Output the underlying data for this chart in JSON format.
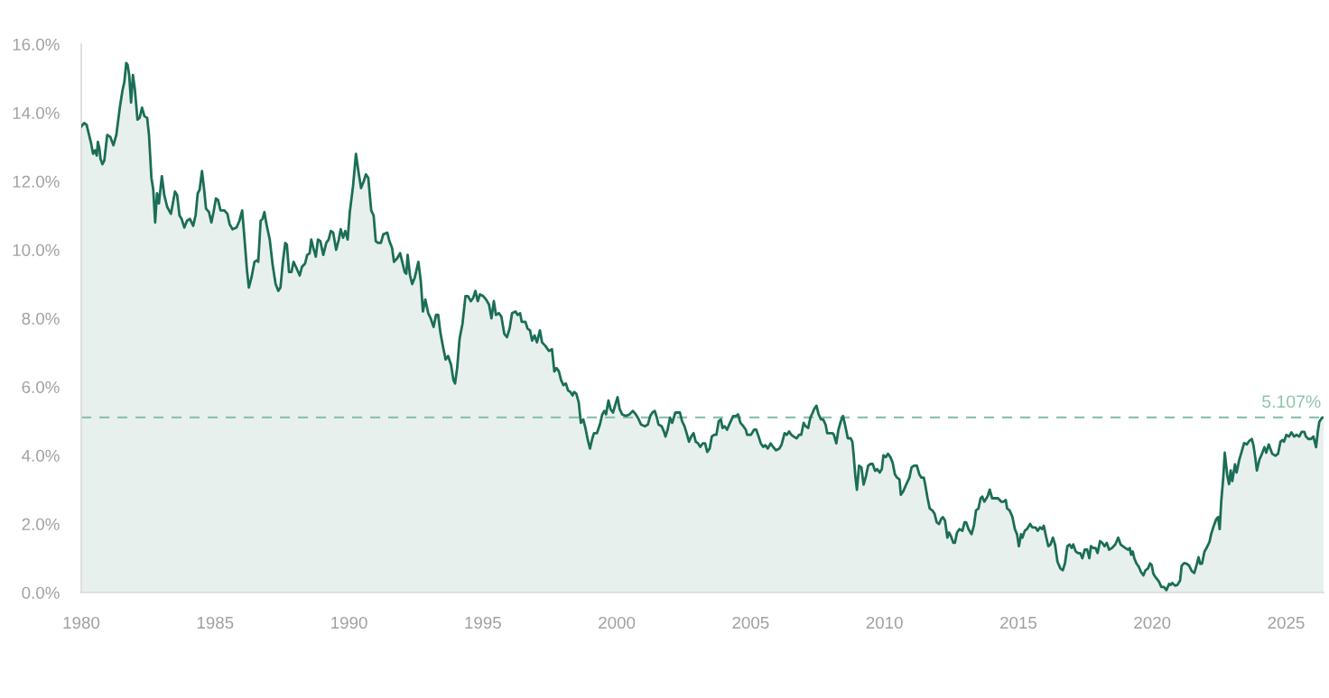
{
  "chart_data": {
    "type": "area",
    "x": [
      1980.0,
      1980.11,
      1980.2,
      1980.37,
      1980.44,
      1980.51,
      1980.58,
      1980.62,
      1980.68,
      1980.72,
      1980.79,
      1980.86,
      1980.97,
      1981.08,
      1981.2,
      1981.31,
      1981.44,
      1981.54,
      1981.61,
      1981.68,
      1981.73,
      1981.79,
      1981.86,
      1981.93,
      1982.0,
      1982.1,
      1982.18,
      1982.27,
      1982.36,
      1982.46,
      1982.53,
      1982.62,
      1982.69,
      1982.76,
      1982.83,
      1982.9,
      1983.01,
      1983.1,
      1983.21,
      1983.35,
      1983.5,
      1983.58,
      1983.67,
      1983.75,
      1983.85,
      1983.95,
      1984.06,
      1984.18,
      1984.27,
      1984.35,
      1984.42,
      1984.51,
      1984.59,
      1984.66,
      1984.77,
      1984.86,
      1984.94,
      1985.03,
      1985.11,
      1985.2,
      1985.34,
      1985.46,
      1985.54,
      1985.65,
      1985.8,
      1985.91,
      1986.01,
      1986.09,
      1986.19,
      1986.26,
      1986.36,
      1986.47,
      1986.57,
      1986.61,
      1986.7,
      1986.77,
      1986.84,
      1986.93,
      1987.04,
      1987.15,
      1987.26,
      1987.36,
      1987.44,
      1987.53,
      1987.62,
      1987.68,
      1987.76,
      1987.85,
      1987.93,
      1988.02,
      1988.16,
      1988.24,
      1988.36,
      1988.44,
      1988.53,
      1988.59,
      1988.67,
      1988.76,
      1988.84,
      1988.93,
      1989.04,
      1989.15,
      1989.24,
      1989.32,
      1989.41,
      1989.52,
      1989.62,
      1989.69,
      1989.78,
      1989.86,
      1989.95,
      1990.03,
      1990.15,
      1990.26,
      1990.35,
      1990.45,
      1990.55,
      1990.63,
      1990.72,
      1990.83,
      1990.92,
      1991.0,
      1991.09,
      1991.19,
      1991.28,
      1991.43,
      1991.51,
      1991.61,
      1991.68,
      1991.8,
      1991.91,
      1991.99,
      1992.08,
      1992.14,
      1992.19,
      1992.28,
      1992.36,
      1992.46,
      1992.59,
      1992.68,
      1992.76,
      1992.85,
      1992.96,
      1993.05,
      1993.16,
      1993.25,
      1993.33,
      1993.42,
      1993.53,
      1993.61,
      1993.7,
      1993.81,
      1993.9,
      1993.96,
      1994.04,
      1994.13,
      1994.24,
      1994.35,
      1994.44,
      1994.55,
      1994.64,
      1994.72,
      1994.81,
      1994.89,
      1995.01,
      1995.12,
      1995.23,
      1995.32,
      1995.41,
      1995.49,
      1995.6,
      1995.69,
      1995.8,
      1995.9,
      1996.0,
      1996.09,
      1996.22,
      1996.3,
      1996.39,
      1996.45,
      1996.59,
      1996.67,
      1996.76,
      1996.84,
      1996.93,
      1997.02,
      1997.13,
      1997.21,
      1997.33,
      1997.47,
      1997.58,
      1997.67,
      1997.75,
      1997.84,
      1997.92,
      1998.01,
      1998.1,
      1998.18,
      1998.27,
      1998.35,
      1998.41,
      1998.49,
      1998.58,
      1998.66,
      1998.75,
      1998.83,
      1998.92,
      1999.0,
      1999.09,
      1999.15,
      1999.26,
      1999.37,
      1999.46,
      1999.54,
      1999.6,
      1999.69,
      1999.77,
      1999.86,
      2000.03,
      2000.11,
      2000.2,
      2000.34,
      2000.48,
      2000.6,
      2000.71,
      2000.79,
      2000.91,
      2001.05,
      2001.16,
      2001.25,
      2001.33,
      2001.42,
      2001.5,
      2001.56,
      2001.68,
      2001.76,
      2001.82,
      2001.9,
      2001.99,
      2002.07,
      2002.19,
      2002.27,
      2002.36,
      2002.44,
      2002.53,
      2002.61,
      2002.7,
      2002.78,
      2002.87,
      2002.95,
      2003.04,
      2003.12,
      2003.21,
      2003.3,
      2003.38,
      2003.47,
      2003.55,
      2003.64,
      2003.72,
      2003.81,
      2003.89,
      2003.95,
      2004.03,
      2004.12,
      2004.23,
      2004.35,
      2004.46,
      2004.53,
      2004.62,
      2004.73,
      2004.82,
      2004.87,
      2005.01,
      2005.13,
      2005.21,
      2005.3,
      2005.38,
      2005.47,
      2005.55,
      2005.64,
      2005.75,
      2005.84,
      2005.95,
      2006.07,
      2006.15,
      2006.27,
      2006.35,
      2006.44,
      2006.52,
      2006.61,
      2006.72,
      2006.81,
      2006.89,
      2006.98,
      2007.06,
      2007.15,
      2007.23,
      2007.32,
      2007.37,
      2007.46,
      2007.54,
      2007.63,
      2007.71,
      2007.8,
      2007.86,
      2007.94,
      2008.06,
      2008.11,
      2008.2,
      2008.28,
      2008.37,
      2008.45,
      2008.54,
      2008.63,
      2008.74,
      2008.8,
      2008.85,
      2008.91,
      2008.97,
      2009.05,
      2009.14,
      2009.22,
      2009.31,
      2009.39,
      2009.48,
      2009.56,
      2009.65,
      2009.73,
      2009.82,
      2009.9,
      2009.96,
      2010.05,
      2010.13,
      2010.22,
      2010.3,
      2010.39,
      2010.47,
      2010.56,
      2010.61,
      2010.7,
      2010.81,
      2010.93,
      2011.01,
      2011.1,
      2011.21,
      2011.3,
      2011.38,
      2011.47,
      2011.52,
      2011.61,
      2011.69,
      2011.78,
      2011.87,
      2011.95,
      2012.04,
      2012.12,
      2012.18,
      2012.26,
      2012.35,
      2012.41,
      2012.48,
      2012.57,
      2012.63,
      2012.71,
      2012.8,
      2012.91,
      2012.99,
      2013.05,
      2013.14,
      2013.25,
      2013.34,
      2013.42,
      2013.51,
      2013.59,
      2013.65,
      2013.73,
      2013.85,
      2013.93,
      2014.02,
      2014.13,
      2014.24,
      2014.36,
      2014.44,
      2014.53,
      2014.58,
      2014.67,
      2014.78,
      2014.87,
      2014.95,
      2015.02,
      2015.1,
      2015.15,
      2015.24,
      2015.32,
      2015.44,
      2015.52,
      2015.64,
      2015.72,
      2015.81,
      2015.89,
      2015.95,
      2016.03,
      2016.12,
      2016.2,
      2016.29,
      2016.37,
      2016.46,
      2016.57,
      2016.66,
      2016.74,
      2016.83,
      2016.91,
      2016.99,
      2017.05,
      2017.14,
      2017.23,
      2017.31,
      2017.39,
      2017.48,
      2017.57,
      2017.65,
      2017.71,
      2017.79,
      2017.88,
      2017.96,
      2018.05,
      2018.13,
      2018.22,
      2018.3,
      2018.39,
      2018.5,
      2018.62,
      2018.73,
      2018.82,
      2018.9,
      2018.99,
      2019.1,
      2019.16,
      2019.21,
      2019.27,
      2019.33,
      2019.41,
      2019.5,
      2019.58,
      2019.67,
      2019.75,
      2019.84,
      2019.92,
      2019.98,
      2020.04,
      2020.12,
      2020.25,
      2020.34,
      2020.44,
      2020.53,
      2020.63,
      2020.69,
      2020.75,
      2020.85,
      2020.94,
      2021.04,
      2021.1,
      2021.19,
      2021.29,
      2021.38,
      2021.48,
      2021.57,
      2021.67,
      2021.73,
      2021.79,
      2021.86,
      2021.95,
      2022.05,
      2022.14,
      2022.2,
      2022.3,
      2022.39,
      2022.46,
      2022.52,
      2022.58,
      2022.65,
      2022.71,
      2022.8,
      2022.87,
      2022.93,
      2022.99,
      2023.09,
      2023.15,
      2023.25,
      2023.34,
      2023.43,
      2023.53,
      2023.62,
      2023.72,
      2023.78,
      2023.85,
      2023.91,
      2024.0,
      2024.1,
      2024.19,
      2024.26,
      2024.35,
      2024.48,
      2024.6,
      2024.7,
      2024.79,
      2024.86,
      2024.92,
      2025.01,
      2025.11,
      2025.2,
      2025.3,
      2025.39,
      2025.49,
      2025.58,
      2025.68,
      2025.74,
      2025.83,
      2025.93,
      2026.02,
      2026.12,
      2026.18,
      2026.24,
      2026.34,
      2026.4
    ],
    "series": [
      {
        "color": "#1b6e56",
        "values": [
          13.6,
          13.7,
          13.65,
          13.1,
          12.8,
          12.9,
          12.75,
          13.15,
          12.95,
          12.65,
          12.5,
          12.6,
          13.35,
          13.3,
          13.05,
          13.35,
          14.15,
          14.65,
          14.9,
          15.45,
          15.4,
          15.1,
          14.3,
          15.1,
          14.7,
          13.8,
          13.85,
          14.15,
          13.9,
          13.85,
          13.35,
          12.1,
          11.75,
          10.8,
          11.65,
          11.35,
          12.15,
          11.6,
          11.25,
          11.05,
          11.7,
          11.6,
          11.0,
          10.9,
          10.65,
          10.85,
          10.9,
          10.7,
          11.0,
          11.65,
          11.75,
          12.3,
          11.75,
          11.2,
          11.1,
          10.8,
          11.1,
          11.5,
          11.45,
          11.15,
          11.15,
          11.05,
          10.75,
          10.6,
          10.65,
          10.85,
          11.15,
          10.4,
          9.4,
          8.9,
          9.2,
          9.65,
          9.7,
          9.65,
          10.85,
          10.9,
          11.1,
          10.7,
          10.3,
          9.55,
          9.0,
          8.8,
          8.9,
          9.65,
          10.2,
          10.15,
          9.35,
          9.35,
          9.65,
          9.5,
          9.25,
          9.5,
          9.6,
          9.85,
          9.9,
          10.3,
          10.05,
          9.8,
          10.3,
          10.25,
          9.85,
          10.2,
          10.3,
          10.55,
          10.5,
          10.0,
          10.3,
          10.6,
          10.35,
          10.55,
          10.3,
          11.1,
          11.85,
          12.8,
          12.3,
          11.8,
          12.0,
          12.2,
          12.1,
          11.15,
          11.0,
          10.25,
          10.2,
          10.2,
          10.45,
          10.5,
          10.25,
          10.05,
          9.65,
          9.75,
          9.9,
          9.65,
          9.35,
          9.3,
          9.85,
          9.25,
          9.0,
          9.2,
          9.65,
          9.1,
          8.2,
          8.55,
          8.15,
          8.0,
          7.75,
          8.1,
          8.1,
          7.55,
          7.1,
          6.8,
          6.9,
          6.65,
          6.2,
          6.1,
          6.55,
          7.4,
          7.85,
          8.65,
          8.65,
          8.5,
          8.6,
          8.8,
          8.5,
          8.7,
          8.65,
          8.55,
          8.4,
          8.0,
          8.5,
          8.1,
          8.15,
          8.05,
          7.55,
          7.45,
          7.7,
          8.15,
          8.2,
          8.1,
          8.15,
          7.9,
          7.9,
          7.7,
          7.65,
          7.35,
          7.5,
          7.3,
          7.65,
          7.3,
          7.2,
          7.05,
          7.1,
          6.45,
          6.55,
          6.45,
          6.2,
          6.05,
          6.1,
          5.9,
          5.85,
          5.75,
          5.85,
          5.8,
          5.55,
          4.95,
          5.05,
          4.8,
          4.45,
          4.2,
          4.5,
          4.65,
          4.65,
          4.9,
          5.2,
          5.3,
          5.2,
          5.6,
          5.35,
          5.25,
          5.7,
          5.35,
          5.2,
          5.15,
          5.2,
          5.3,
          5.2,
          5.1,
          4.9,
          4.85,
          4.9,
          5.15,
          5.25,
          5.3,
          5.1,
          4.9,
          4.85,
          4.7,
          4.55,
          4.75,
          5.1,
          4.95,
          5.25,
          5.25,
          5.25,
          5.0,
          4.85,
          4.65,
          4.4,
          4.55,
          4.65,
          4.4,
          4.35,
          4.25,
          4.35,
          4.35,
          4.1,
          4.2,
          4.55,
          4.6,
          4.6,
          5.0,
          5.05,
          4.8,
          4.85,
          4.75,
          4.95,
          5.15,
          5.15,
          5.2,
          4.95,
          4.85,
          4.75,
          4.6,
          4.6,
          4.75,
          4.75,
          4.55,
          4.35,
          4.25,
          4.3,
          4.2,
          4.35,
          4.25,
          4.15,
          4.2,
          4.3,
          4.65,
          4.6,
          4.7,
          4.6,
          4.55,
          4.5,
          4.6,
          4.6,
          4.95,
          4.85,
          4.8,
          5.1,
          5.25,
          5.35,
          5.45,
          5.2,
          5.05,
          5.05,
          4.9,
          4.65,
          4.65,
          4.65,
          4.6,
          4.35,
          4.75,
          5.0,
          5.15,
          4.85,
          4.5,
          4.5,
          4.4,
          4.0,
          3.4,
          3.0,
          3.7,
          3.65,
          3.15,
          3.4,
          3.7,
          3.75,
          3.75,
          3.55,
          3.6,
          3.5,
          3.6,
          4.0,
          3.95,
          4.05,
          3.95,
          3.8,
          3.45,
          3.35,
          3.3,
          2.85,
          2.95,
          3.15,
          3.35,
          3.65,
          3.7,
          3.7,
          3.45,
          3.35,
          3.35,
          3.15,
          2.75,
          2.45,
          2.4,
          2.3,
          2.05,
          2.0,
          2.15,
          2.2,
          2.1,
          1.6,
          1.75,
          1.65,
          1.45,
          1.45,
          1.75,
          1.85,
          1.8,
          2.05,
          2.05,
          1.85,
          1.7,
          1.95,
          2.4,
          2.45,
          2.75,
          2.8,
          2.65,
          2.8,
          3.0,
          2.75,
          2.75,
          2.75,
          2.65,
          2.65,
          2.7,
          2.45,
          2.4,
          2.2,
          1.85,
          1.7,
          1.35,
          1.7,
          1.6,
          1.8,
          1.85,
          2.0,
          1.9,
          1.9,
          1.8,
          1.9,
          1.85,
          1.95,
          1.65,
          1.35,
          1.4,
          1.6,
          1.4,
          0.9,
          0.7,
          0.65,
          0.85,
          1.35,
          1.4,
          1.3,
          1.4,
          1.2,
          1.15,
          1.15,
          1.0,
          1.25,
          1.25,
          1.0,
          1.35,
          1.3,
          1.3,
          1.15,
          1.5,
          1.45,
          1.35,
          1.45,
          1.25,
          1.3,
          1.4,
          1.6,
          1.4,
          1.35,
          1.3,
          1.25,
          1.3,
          1.1,
          1.2,
          1.0,
          0.85,
          0.75,
          0.6,
          0.5,
          0.65,
          0.7,
          0.85,
          0.8,
          0.55,
          0.45,
          0.32,
          0.16,
          0.16,
          0.07,
          0.25,
          0.22,
          0.28,
          0.2,
          0.22,
          0.35,
          0.78,
          0.86,
          0.84,
          0.78,
          0.62,
          0.57,
          0.84,
          1.03,
          0.84,
          0.84,
          1.19,
          1.33,
          1.48,
          1.7,
          1.95,
          2.14,
          2.2,
          1.85,
          2.69,
          3.31,
          4.08,
          3.43,
          3.16,
          3.56,
          3.25,
          3.74,
          3.5,
          3.87,
          4.11,
          4.36,
          4.32,
          4.42,
          4.48,
          4.3,
          3.93,
          3.56,
          3.87,
          4.05,
          4.24,
          4.08,
          4.32,
          4.05,
          3.99,
          4.05,
          4.4,
          4.45,
          4.4,
          4.6,
          4.55,
          4.67,
          4.55,
          4.6,
          4.55,
          4.69,
          4.69,
          4.55,
          4.48,
          4.48,
          4.55,
          4.24,
          4.67,
          4.98,
          5.1,
          5.1
        ]
      }
    ],
    "xlim": [
      1980,
      2026.4
    ],
    "xticks": [
      1980,
      1985,
      1990,
      1995,
      2000,
      2005,
      2010,
      2015,
      2020,
      2025
    ],
    "ylim": [
      0,
      16
    ],
    "yticks": [
      {
        "value": 0,
        "label": "0.0%"
      },
      {
        "value": 2,
        "label": "2.0%"
      },
      {
        "value": 4,
        "label": "4.0%"
      },
      {
        "value": 6,
        "label": "6.0%"
      },
      {
        "value": 8,
        "label": "8.0%"
      },
      {
        "value": 10,
        "label": "10.0%"
      },
      {
        "value": 12,
        "label": "12.0%"
      },
      {
        "value": 14,
        "label": "14.0%"
      },
      {
        "value": 16,
        "label": "16.0%"
      }
    ],
    "ref_lines": [
      {
        "axis": "y",
        "value": 5.107,
        "label": "5.107%",
        "color": "#8dc3ab",
        "line_style": "dashed"
      }
    ]
  }
}
